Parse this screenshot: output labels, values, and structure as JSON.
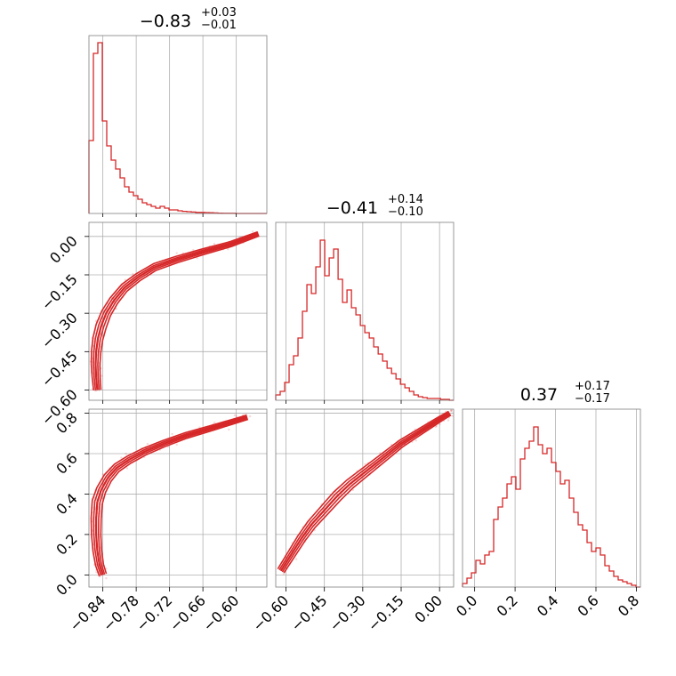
{
  "chart_data": {
    "type": "corner",
    "color": "#d62728",
    "grid": true,
    "panels": {
      "hist": [
        {
          "param": 0,
          "title": {
            "main": "−0.83",
            "sup": "+0.03",
            "sub": "−0.01"
          },
          "xlim": [
            -0.865,
            -0.545
          ],
          "ylim": [
            0,
            1.0
          ],
          "bin_width": 0.008,
          "bin_start": -0.865,
          "values": [
            0.41,
            0.9,
            0.96,
            0.52,
            0.38,
            0.3,
            0.25,
            0.2,
            0.15,
            0.12,
            0.1,
            0.08,
            0.06,
            0.05,
            0.04,
            0.03,
            0.04,
            0.03,
            0.02,
            0.02,
            0.015,
            0.012,
            0.01,
            0.008,
            0.006,
            0.006,
            0.005,
            0.004,
            0.003,
            0.002,
            0.001,
            0.001,
            0.001,
            0.0,
            0.0,
            0.0,
            0.0,
            0.0,
            0.0,
            0.0
          ]
        },
        {
          "param": 1,
          "title": {
            "main": "−0.41",
            "sup": "+0.14",
            "sub": "−0.10"
          },
          "xlim": [
            -0.64,
            0.055
          ],
          "ylim": [
            0,
            1.0
          ],
          "bin_width": 0.0174,
          "bin_start": -0.64,
          "values": [
            0.03,
            0.05,
            0.1,
            0.2,
            0.25,
            0.35,
            0.5,
            0.65,
            0.6,
            0.75,
            0.9,
            0.7,
            0.8,
            0.85,
            0.68,
            0.55,
            0.62,
            0.52,
            0.48,
            0.42,
            0.38,
            0.35,
            0.3,
            0.26,
            0.22,
            0.18,
            0.15,
            0.12,
            0.09,
            0.07,
            0.05,
            0.03,
            0.02,
            0.015,
            0.01,
            0.01,
            0.01,
            0.005,
            0.005,
            0.0
          ]
        },
        {
          "param": 2,
          "title": {
            "main": "0.37",
            "sup": "+0.17",
            "sub": "−0.17"
          },
          "xlim": [
            -0.06,
            0.82
          ],
          "ylim": [
            0,
            1.0
          ],
          "bin_width": 0.022,
          "bin_start": -0.06,
          "values": [
            0.02,
            0.05,
            0.08,
            0.15,
            0.13,
            0.18,
            0.2,
            0.38,
            0.45,
            0.5,
            0.58,
            0.62,
            0.55,
            0.72,
            0.78,
            0.82,
            0.9,
            0.8,
            0.75,
            0.78,
            0.7,
            0.65,
            0.58,
            0.6,
            0.5,
            0.42,
            0.35,
            0.32,
            0.25,
            0.2,
            0.22,
            0.18,
            0.12,
            0.09,
            0.06,
            0.04,
            0.03,
            0.02,
            0.01,
            0.0
          ]
        }
      ],
      "scatter": [
        {
          "row": 1,
          "col": 0,
          "xlim": [
            -0.865,
            -0.545
          ],
          "ylim": [
            -0.64,
            0.055
          ],
          "curve": [
            [
              -0.85,
              -0.6
            ],
            [
              -0.852,
              -0.55
            ],
            [
              -0.853,
              -0.5
            ],
            [
              -0.852,
              -0.45
            ],
            [
              -0.849,
              -0.4
            ],
            [
              -0.843,
              -0.35
            ],
            [
              -0.834,
              -0.3
            ],
            [
              -0.82,
              -0.25
            ],
            [
              -0.801,
              -0.2
            ],
            [
              -0.777,
              -0.16
            ],
            [
              -0.747,
              -0.12
            ],
            [
              -0.707,
              -0.09
            ],
            [
              -0.66,
              -0.06
            ],
            [
              -0.61,
              -0.03
            ],
            [
              -0.56,
              0.01
            ]
          ]
        },
        {
          "row": 2,
          "col": 0,
          "xlim": [
            -0.865,
            -0.545
          ],
          "ylim": [
            -0.06,
            0.82
          ],
          "curve": [
            [
              -0.84,
              0.0
            ],
            [
              -0.846,
              0.05
            ],
            [
              -0.85,
              0.12
            ],
            [
              -0.852,
              0.2
            ],
            [
              -0.852,
              0.28
            ],
            [
              -0.85,
              0.36
            ],
            [
              -0.843,
              0.42
            ],
            [
              -0.831,
              0.48
            ],
            [
              -0.815,
              0.53
            ],
            [
              -0.793,
              0.57
            ],
            [
              -0.765,
              0.61
            ],
            [
              -0.73,
              0.65
            ],
            [
              -0.69,
              0.69
            ],
            [
              -0.64,
              0.73
            ],
            [
              -0.58,
              0.78
            ]
          ]
        },
        {
          "row": 2,
          "col": 1,
          "xlim": [
            -0.64,
            0.055
          ],
          "ylim": [
            -0.06,
            0.82
          ],
          "curve": [
            [
              -0.62,
              0.02
            ],
            [
              -0.58,
              0.1
            ],
            [
              -0.54,
              0.18
            ],
            [
              -0.5,
              0.25
            ],
            [
              -0.45,
              0.32
            ],
            [
              -0.4,
              0.39
            ],
            [
              -0.35,
              0.45
            ],
            [
              -0.3,
              0.5
            ],
            [
              -0.25,
              0.55
            ],
            [
              -0.2,
              0.6
            ],
            [
              -0.15,
              0.65
            ],
            [
              -0.1,
              0.69
            ],
            [
              -0.05,
              0.73
            ],
            [
              0.0,
              0.77
            ],
            [
              0.04,
              0.8
            ]
          ]
        }
      ]
    },
    "axes": {
      "x": [
        {
          "col": 0,
          "ticks": [
            -0.84,
            -0.78,
            -0.72,
            -0.66,
            -0.6
          ],
          "labels": [
            "−0.84",
            "−0.78",
            "−0.72",
            "−0.66",
            "−0.60"
          ]
        },
        {
          "col": 1,
          "ticks": [
            -0.6,
            -0.45,
            -0.3,
            -0.15,
            0.0
          ],
          "labels": [
            "−0.60",
            "−0.45",
            "−0.30",
            "−0.15",
            "0.00"
          ]
        },
        {
          "col": 2,
          "ticks": [
            0.0,
            0.2,
            0.4,
            0.6,
            0.8
          ],
          "labels": [
            "0.0",
            "0.2",
            "0.4",
            "0.6",
            "0.8"
          ]
        }
      ],
      "y": [
        {
          "row": 1,
          "ticks": [
            0.0,
            -0.15,
            -0.3,
            -0.45,
            -0.6
          ],
          "labels": [
            "0.00",
            "−0.15",
            "−0.30",
            "−0.45",
            "−0.60"
          ]
        },
        {
          "row": 2,
          "ticks": [
            0.8,
            0.6,
            0.4,
            0.2,
            0.0
          ],
          "labels": [
            "0.8",
            "0.6",
            "0.4",
            "0.2",
            "0.0"
          ]
        }
      ]
    }
  }
}
